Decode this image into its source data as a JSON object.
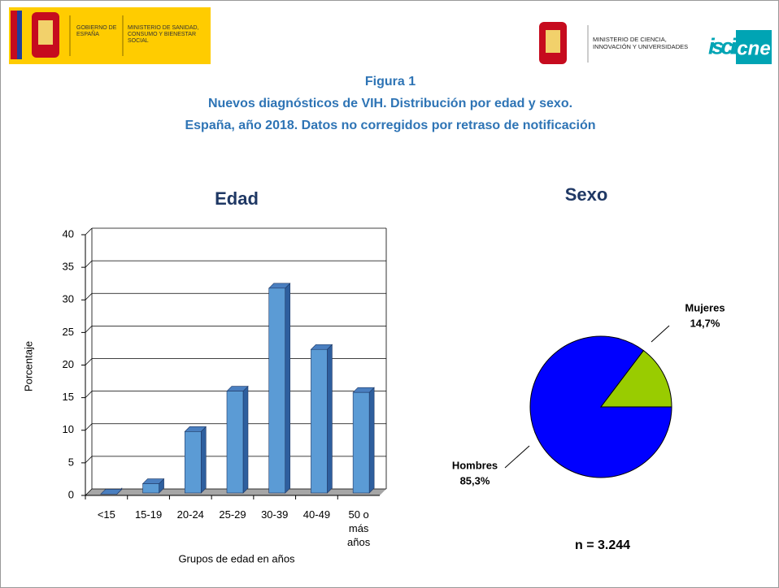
{
  "header": {
    "left_org": "GOBIERNO DE ESPAÑA",
    "left_ministry": "MINISTERIO DE SANIDAD, CONSUMO Y BIENESTAR SOCIAL",
    "right_ministry": "MINISTERIO DE CIENCIA, INNOVACIÓN Y UNIVERSIDADES",
    "logo_isciii": "isciii",
    "logo_cne": "cne"
  },
  "figure": {
    "label": "Figura 1",
    "title": "Nuevos diagnósticos de VIH. Distribución por edad y sexo.",
    "subtitle": "España, año 2018. Datos no corregidos por retraso de notificación"
  },
  "chart_data": [
    {
      "type": "bar",
      "title": "Edad",
      "x_label": "Grupos de edad en años",
      "y_label": "Porcentaje",
      "categories": [
        "<15",
        "15-19",
        "20-24",
        "25-29",
        "30-39",
        "40-49",
        "50 o más años"
      ],
      "values": [
        0.2,
        1.8,
        9.8,
        16,
        31.8,
        22.4,
        15.8
      ],
      "color": "#5b9bd5",
      "ylim": [
        0,
        40
      ],
      "yticks": [
        0,
        5,
        10,
        15,
        20,
        25,
        30,
        35,
        40
      ],
      "grid": true
    },
    {
      "type": "pie",
      "title": "Sexo",
      "categories": [
        "Hombres",
        "Mujeres"
      ],
      "values": [
        85.3,
        14.7
      ],
      "value_labels": [
        "85,3%",
        "14,7%"
      ],
      "colors": [
        "#0000ff",
        "#99cc00"
      ],
      "note": "n = 3.244"
    }
  ]
}
